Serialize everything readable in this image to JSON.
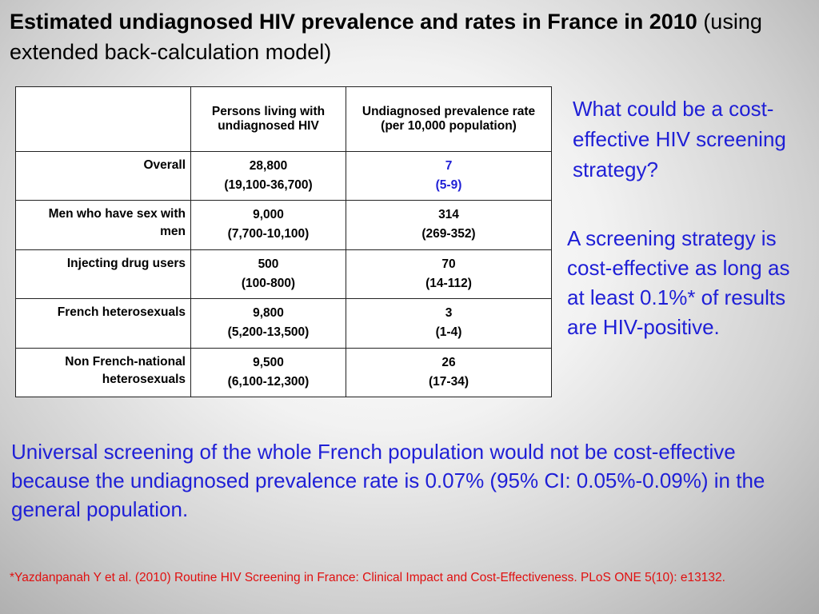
{
  "title": {
    "bold": "Estimated undiagnosed HIV prevalence and rates in France in 2010",
    "normal": "(using extended back-calculation model)"
  },
  "table": {
    "headers": [
      "",
      "Persons living with undiagnosed HIV",
      "Undiagnosed prevalence rate (per 10,000 population)"
    ],
    "rows": [
      {
        "label": "Overall",
        "persons": "28,800",
        "persons_range": "(19,100-36,700)",
        "rate": "7",
        "rate_range": "(5-9)"
      },
      {
        "label": "Men who have sex with men",
        "persons": "9,000",
        "persons_range": "(7,700-10,100)",
        "rate": "314",
        "rate_range": "(269-352)"
      },
      {
        "label": "Injecting drug users",
        "persons": "500",
        "persons_range": "(100-800)",
        "rate": "70",
        "rate_range": "(14-112)"
      },
      {
        "label": "French heterosexuals",
        "persons": "9,800",
        "persons_range": "(5,200-13,500)",
        "rate": "3",
        "rate_range": "(1-4)"
      },
      {
        "label": "Non French-national heterosexuals",
        "persons": "9,500",
        "persons_range": "(6,100-12,300)",
        "rate": "26",
        "rate_range": "(17-34)"
      }
    ]
  },
  "side": {
    "question": "What could be a cost-effective HIV screening strategy?",
    "answer": "A screening strategy is cost-effective as long as at least 0.1%* of results are HIV-positive."
  },
  "conclusion": "Universal screening of the whole French population would not be cost-effective because the undiagnosed prevalence rate is 0.07% (95% CI: 0.05%-0.09%) in the general population.",
  "footnote": "*Yazdanpanah Y et al. (2010) Routine HIV Screening in France: Clinical Impact and Cost-Effectiveness. PLoS ONE 5(10): e13132.",
  "colors": {
    "blue_text": "#1f1fd6",
    "red_text": "#e01010"
  }
}
